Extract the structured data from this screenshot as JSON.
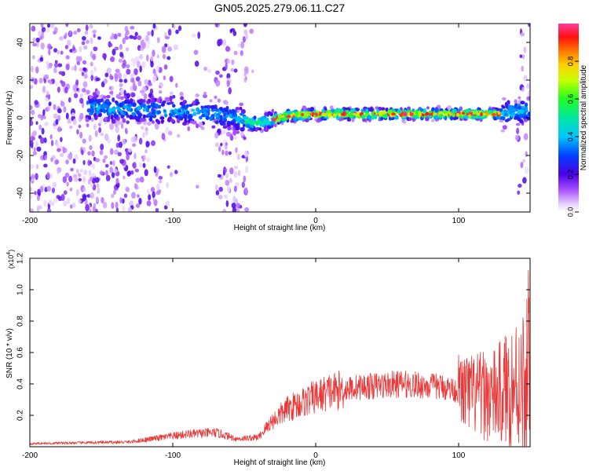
{
  "title": "GN05.2025.279.06.11.C27",
  "chart_data": [
    {
      "type": "heatmap",
      "xlabel": "Height of straight line (km)",
      "ylabel": "Frequency (Hz)",
      "xlim": [
        -200,
        150
      ],
      "ylim": [
        -50,
        50
      ],
      "xticks": [
        -200,
        -100,
        0,
        100
      ],
      "yticks": [
        -40,
        -20,
        0,
        20,
        40
      ],
      "colorbar": {
        "label": "Normalized spectral amplitude",
        "range": [
          0,
          1
        ],
        "ticks": [
          "0.0",
          "0.2",
          "0.4",
          "0.6",
          "0.8"
        ]
      },
      "ridge": [
        {
          "x": -200,
          "f": 6
        },
        {
          "x": -150,
          "f": 5
        },
        {
          "x": -120,
          "f": 4
        },
        {
          "x": -80,
          "f": 3
        },
        {
          "x": -55,
          "f": 0
        },
        {
          "x": -45,
          "f": -3
        },
        {
          "x": -35,
          "f": -2
        },
        {
          "x": -20,
          "f": 1
        },
        {
          "x": 0,
          "f": 2
        },
        {
          "x": 50,
          "f": 2
        },
        {
          "x": 100,
          "f": 2
        },
        {
          "x": 130,
          "f": 2
        },
        {
          "x": 150,
          "f": 4
        }
      ]
    },
    {
      "type": "line",
      "xlabel": "Height of straight line (km)",
      "ylabel": "SNR (10 * v/v)",
      "scale_label": "(x10",
      "scale_exp": "4",
      "xlim": [
        -200,
        150
      ],
      "ylim": [
        0,
        1.2
      ],
      "xticks": [
        -200,
        -100,
        0,
        100
      ],
      "yticks": [
        "0.2",
        "0.4",
        "0.6",
        "0.8",
        "1.0",
        "1.2"
      ],
      "color": "#e83a3a",
      "envelope": [
        {
          "x": -200,
          "y": 0.02
        },
        {
          "x": -130,
          "y": 0.03
        },
        {
          "x": -115,
          "y": 0.05
        },
        {
          "x": -90,
          "y": 0.08
        },
        {
          "x": -70,
          "y": 0.09
        },
        {
          "x": -55,
          "y": 0.05
        },
        {
          "x": -40,
          "y": 0.06
        },
        {
          "x": -32,
          "y": 0.15
        },
        {
          "x": -20,
          "y": 0.24
        },
        {
          "x": -5,
          "y": 0.3
        },
        {
          "x": 10,
          "y": 0.35
        },
        {
          "x": 30,
          "y": 0.38
        },
        {
          "x": 60,
          "y": 0.4
        },
        {
          "x": 90,
          "y": 0.38
        },
        {
          "x": 110,
          "y": 0.33
        },
        {
          "x": 125,
          "y": 0.32
        },
        {
          "x": 140,
          "y": 0.4
        },
        {
          "x": 150,
          "y": 0.45
        }
      ]
    }
  ]
}
